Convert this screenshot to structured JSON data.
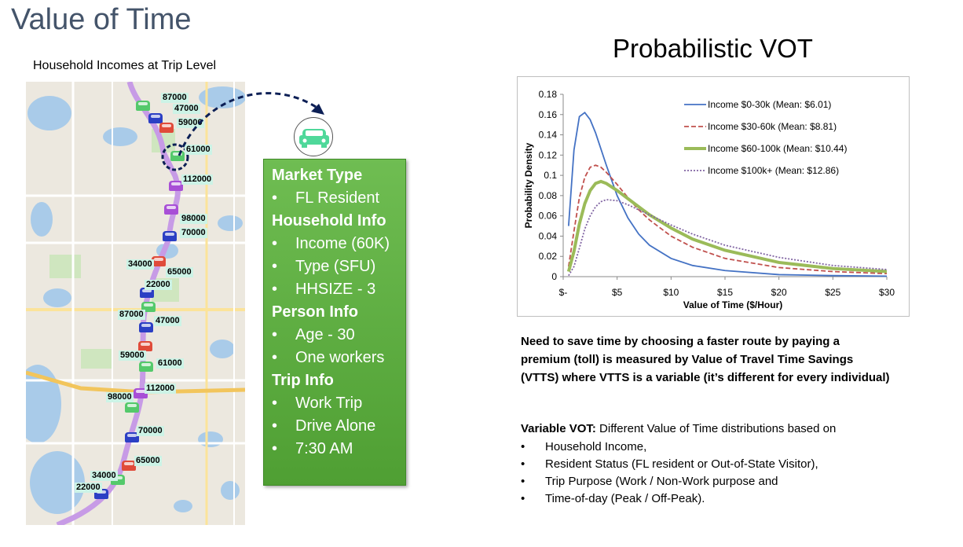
{
  "slide": {
    "title": "Value of Time",
    "map_caption": "Household Incomes at Trip Level"
  },
  "map": {
    "incomes": [
      "87000",
      "47000",
      "59000",
      "61000",
      "112000",
      "98000",
      "70000",
      "34000",
      "65000",
      "22000",
      "87000",
      "47000",
      "59000",
      "61000",
      "112000",
      "98000",
      "70000",
      "65000",
      "34000",
      "22000"
    ]
  },
  "info_box": {
    "sections": [
      {
        "header": "Market Type",
        "items": [
          "FL Resident"
        ]
      },
      {
        "header": "Household Info",
        "items": [
          "Income (60K)",
          "Type (SFU)",
          "HHSIZE - 3"
        ]
      },
      {
        "header": "Person Info",
        "items": [
          "Age - 30",
          "One workers"
        ]
      },
      {
        "header": "Trip Info",
        "items": [
          "Work Trip",
          "Drive Alone",
          "7:30 AM"
        ]
      }
    ]
  },
  "chart_title": "Probabilistic VOT",
  "chart_data": {
    "type": "line",
    "title": "",
    "xlabel": "Value of Time ($/Hour)",
    "ylabel": "Probability Density",
    "xlim": [
      0,
      30
    ],
    "ylim": [
      0,
      0.18
    ],
    "x_ticks": [
      0,
      5,
      10,
      15,
      20,
      25,
      30
    ],
    "x_tick_labels": [
      "$-",
      "$5",
      "$10",
      "$15",
      "$20",
      "$25",
      "$30"
    ],
    "y_ticks": [
      0,
      0.02,
      0.04,
      0.06,
      0.08,
      0.1,
      0.12,
      0.14,
      0.16,
      0.18
    ],
    "y_tick_labels": [
      "0",
      "0.02",
      "0.04",
      "0.06",
      "0.08",
      "0.1",
      "0.12",
      "0.14",
      "0.16",
      "0.18"
    ],
    "grid": false,
    "legend_position": "top-right",
    "series": [
      {
        "name": "Income $0-30k (Mean: $6.01)",
        "color": "#4472c4",
        "style": "solid",
        "x": [
          0.5,
          1,
          1.5,
          2,
          2.5,
          3,
          4,
          5,
          6,
          7,
          8,
          10,
          12,
          15,
          20,
          25,
          30
        ],
        "y": [
          0.05,
          0.125,
          0.158,
          0.162,
          0.155,
          0.142,
          0.11,
          0.08,
          0.058,
          0.042,
          0.031,
          0.018,
          0.011,
          0.006,
          0.002,
          0.001,
          0.0005
        ]
      },
      {
        "name": "Income $30-60k (Mean: $8.81)",
        "color": "#c0504d",
        "style": "dashed",
        "x": [
          0.5,
          1,
          1.5,
          2,
          2.5,
          3,
          3.5,
          4,
          5,
          6,
          7,
          8,
          10,
          12,
          15,
          20,
          25,
          30
        ],
        "y": [
          0.01,
          0.045,
          0.078,
          0.098,
          0.108,
          0.11,
          0.108,
          0.103,
          0.091,
          0.078,
          0.066,
          0.056,
          0.04,
          0.029,
          0.018,
          0.009,
          0.005,
          0.003
        ]
      },
      {
        "name": "Income $60-100k (Mean: $10.44)",
        "color": "#9bbb59",
        "style": "solid-thick",
        "x": [
          0.5,
          1,
          1.5,
          2,
          2.5,
          3,
          3.5,
          4,
          5,
          6,
          8,
          10,
          12,
          15,
          20,
          25,
          30
        ],
        "y": [
          0.005,
          0.025,
          0.052,
          0.072,
          0.085,
          0.092,
          0.094,
          0.092,
          0.085,
          0.077,
          0.061,
          0.048,
          0.037,
          0.026,
          0.014,
          0.008,
          0.005
        ]
      },
      {
        "name": "Income $100k+ (Mean: $12.86)",
        "color": "#8064a2",
        "style": "dotted",
        "x": [
          0.5,
          1,
          1.5,
          2,
          2.5,
          3,
          3.5,
          4,
          5,
          6,
          8,
          10,
          12,
          15,
          20,
          25,
          30
        ],
        "y": [
          0.001,
          0.01,
          0.028,
          0.047,
          0.06,
          0.069,
          0.074,
          0.076,
          0.075,
          0.071,
          0.061,
          0.051,
          0.042,
          0.031,
          0.019,
          0.011,
          0.007
        ]
      }
    ]
  },
  "description": "Need to save time by choosing a faster route by paying a premium (toll) is measured by Value of Travel Time Savings (VTTS) where VTTS is a variable (it’s different for every individual)",
  "variable_vot": {
    "label": "Variable VOT:",
    "text": " Different Value of Time distributions based on",
    "items": [
      "Household Income,",
      "Resident Status (FL resident or Out-of-State Visitor),",
      "Trip Purpose (Work / Non-Work purpose and",
      "Time-of-day (Peak / Off-Peak)."
    ]
  },
  "colors": {
    "title": "#44546a",
    "route": "#c79be6",
    "info_box": "#5fae41",
    "car_red": "#e04b3a",
    "car_blue": "#2b3fc4",
    "car_green": "#54c96b",
    "car_purple": "#a84fd6"
  }
}
